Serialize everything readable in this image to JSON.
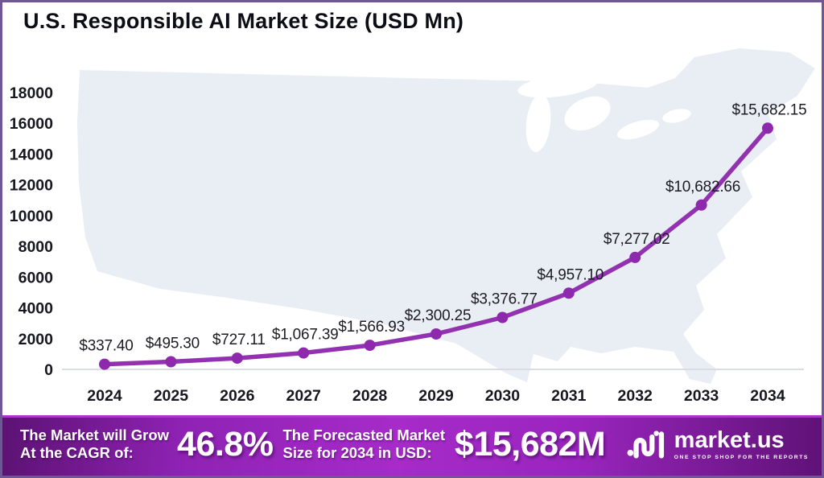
{
  "chart_data": {
    "type": "line",
    "title": "U.S. Responsible AI Market Size (USD Mn)",
    "categories": [
      "2024",
      "2025",
      "2026",
      "2027",
      "2028",
      "2029",
      "2030",
      "2031",
      "2032",
      "2033",
      "2034"
    ],
    "values": [
      337.4,
      495.3,
      727.11,
      1067.39,
      1566.93,
      2300.25,
      3376.77,
      4957.1,
      7277.02,
      10682.66,
      15682.15
    ],
    "point_labels": [
      "$337.40",
      "$495.30",
      "$727.11",
      "$1,067.39",
      "$1,566.93",
      "$2,300.25",
      "$3,376.77",
      "$4,957.10",
      "$7,277.02",
      "$10,682.66",
      "$15,682.15"
    ],
    "ylim": [
      0,
      18000
    ],
    "yticks": [
      0,
      2000,
      4000,
      6000,
      8000,
      10000,
      12000,
      14000,
      16000,
      18000
    ],
    "grid": false,
    "legend": false,
    "line_color": "#9232B0",
    "marker_color": "#8E28AC",
    "background": "us-map-silhouette",
    "background_color": "#E9EEF5"
  },
  "footer": {
    "left_label_line1": "The Market will Grow",
    "left_label_line2": "At the CAGR of:",
    "cagr_value": "46.8%",
    "right_label_line1": "The Forecasted Market",
    "right_label_line2": "Size for 2034 in USD:",
    "forecast_value": "$15,682M",
    "brand_name": "market.us",
    "brand_tagline": "ONE STOP SHOP FOR THE REPORTS"
  }
}
